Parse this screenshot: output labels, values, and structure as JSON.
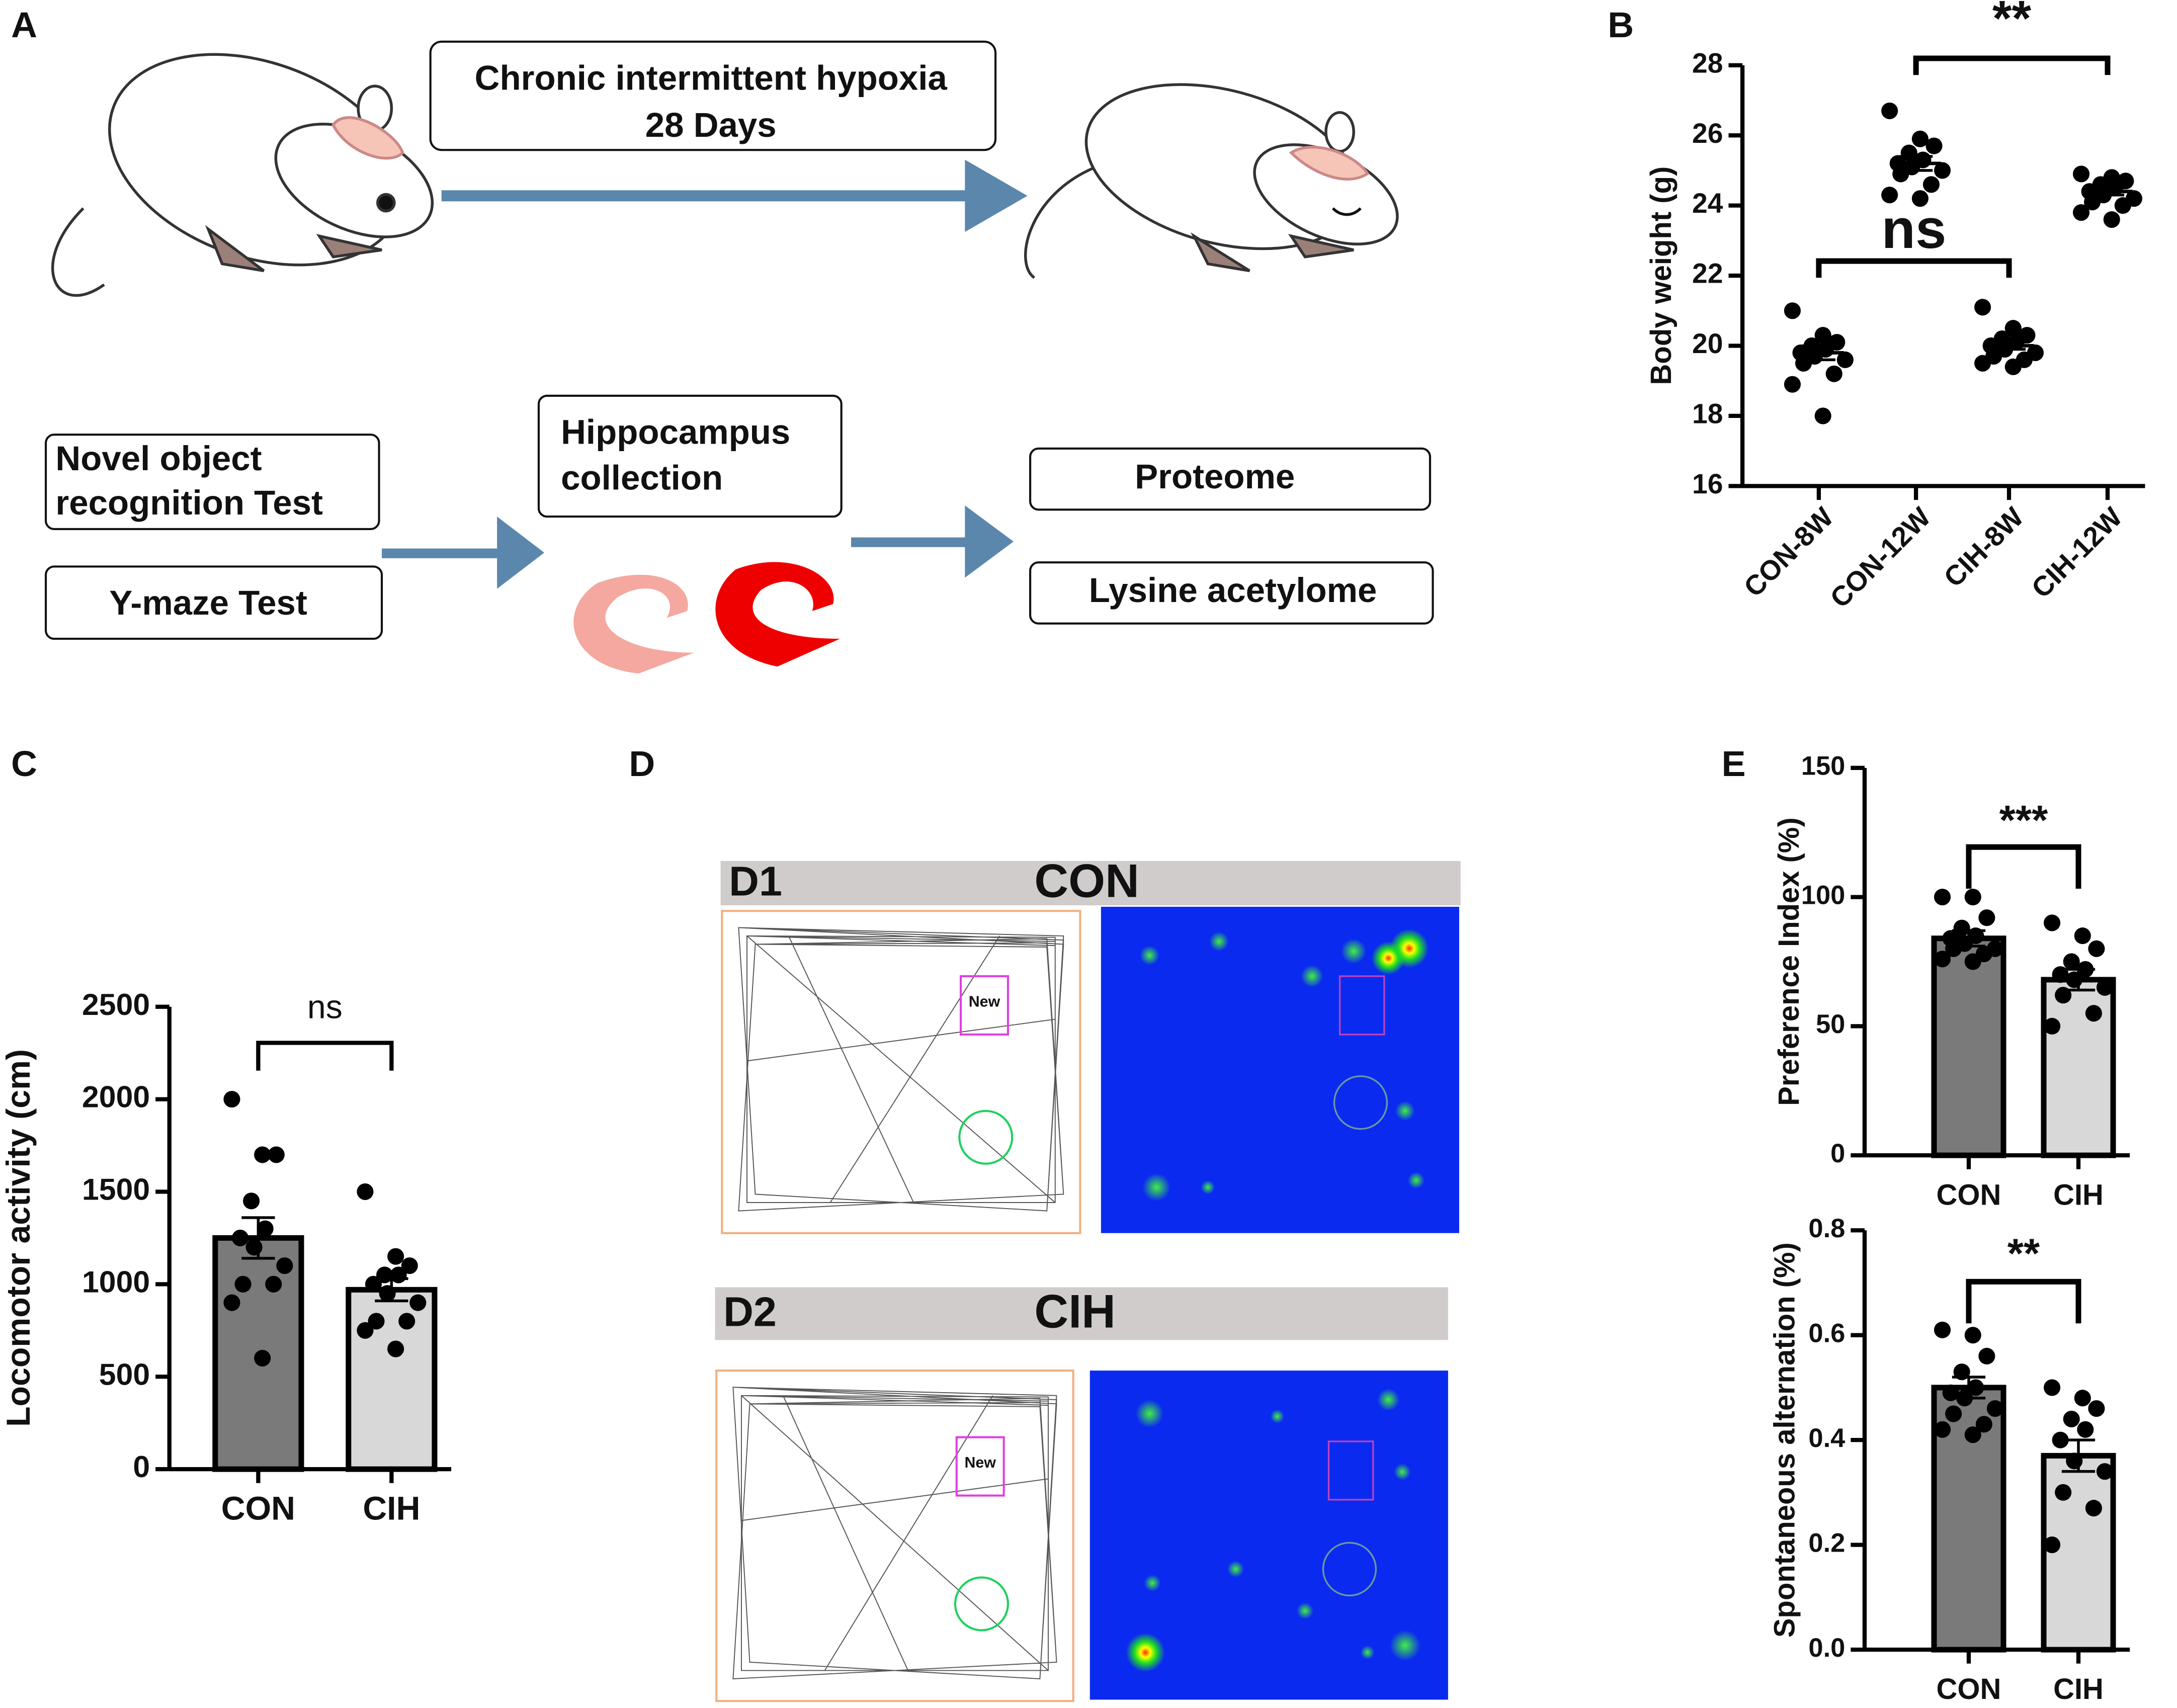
{
  "panel_labels": [
    "A",
    "B",
    "C",
    "D",
    "E"
  ],
  "diagram": {
    "hypoxia": [
      "Chronic intermittent hypoxia",
      "28 Days"
    ],
    "tests": [
      [
        "Novel object",
        "recognition Test"
      ],
      [
        "Y-maze Test"
      ]
    ],
    "collection": [
      "Hippocampus",
      "collection"
    ],
    "omics": [
      "Proteome",
      "Lysine acetylome"
    ]
  },
  "tracking": {
    "panels": [
      {
        "label": "D1",
        "group": "CON",
        "object": "New"
      },
      {
        "label": "D2",
        "group": "CIH",
        "object": "New"
      }
    ]
  },
  "chart_data": [
    {
      "type": "dot",
      "y_label": "Body weight (g)",
      "categories": [
        "CON-8W",
        "CON-12W",
        "CIH-8W",
        "CIH-12W"
      ],
      "points": [
        [
          21,
          20.3,
          20.1,
          20,
          19.9,
          19.8,
          19.7,
          19.6,
          19.5,
          19.2,
          18.9,
          18
        ],
        [
          26.7,
          25.9,
          25.7,
          25.5,
          25.3,
          25.2,
          25.1,
          25,
          24.9,
          24.6,
          24.3,
          24.2
        ],
        [
          21.1,
          20.5,
          20.3,
          20.2,
          20.1,
          20,
          19.9,
          19.8,
          19.7,
          19.6,
          19.5,
          19.4
        ],
        [
          24.9,
          24.8,
          24.7,
          24.6,
          24.5,
          24.4,
          24.3,
          24.2,
          24.1,
          24,
          23.8,
          23.6
        ]
      ],
      "means": [
        19.8,
        25.2,
        20,
        24.4
      ],
      "errors": [
        0.2,
        0.2,
        0.1,
        0.1
      ],
      "color": "#000000",
      "ylim": [
        16,
        28
      ],
      "yticks": [
        16,
        18,
        20,
        22,
        24,
        26,
        28
      ],
      "annotations": [
        "**",
        "ns"
      ]
    },
    {
      "type": "bar",
      "y_label": "Locomotor activity (cm)",
      "categories": [
        "CON",
        "CIH"
      ],
      "values": [
        1250,
        970
      ],
      "errors": [
        110,
        60
      ],
      "points": [
        [
          2000,
          1700,
          1700,
          1450,
          1300,
          1250,
          1200,
          1100,
          1000,
          1000,
          900,
          600
        ],
        [
          1500,
          1150,
          1100,
          1050,
          1050,
          1000,
          950,
          900,
          800,
          800,
          750,
          650
        ]
      ],
      "colors": [
        "#7a7a7a",
        "#d8d8d8"
      ],
      "ylim": [
        0,
        2500
      ],
      "yticks": [
        0,
        500,
        1000,
        1500,
        2000,
        2500
      ],
      "annotations": [
        "ns"
      ]
    },
    {
      "type": "bar",
      "y_label": "Preference Index (%)",
      "categories": [
        "CON",
        "CIH"
      ],
      "values": [
        84,
        68
      ],
      "errors": [
        3,
        4
      ],
      "points": [
        [
          100,
          100,
          92,
          88,
          85,
          84,
          82,
          80,
          80,
          78,
          76,
          75
        ],
        [
          90,
          85,
          80,
          75,
          72,
          70,
          68,
          65,
          62,
          55,
          50
        ]
      ],
      "colors": [
        "#7a7a7a",
        "#d8d8d8"
      ],
      "ylim": [
        0,
        150
      ],
      "yticks": [
        0,
        50,
        100,
        150
      ],
      "annotations": [
        "***"
      ]
    },
    {
      "type": "bar",
      "y_label": "Spontaneous alternation (%)",
      "categories": [
        "CON",
        "CIH"
      ],
      "values": [
        0.5,
        0.37
      ],
      "errors": [
        0.02,
        0.03
      ],
      "points": [
        [
          0.61,
          0.6,
          0.56,
          0.53,
          0.5,
          0.49,
          0.48,
          0.46,
          0.45,
          0.43,
          0.42,
          0.41
        ],
        [
          0.5,
          0.48,
          0.46,
          0.44,
          0.42,
          0.4,
          0.36,
          0.34,
          0.3,
          0.27,
          0.2
        ]
      ],
      "colors": [
        "#7a7a7a",
        "#d8d8d8"
      ],
      "ylim": [
        0,
        0.8
      ],
      "yticks": [
        {
          "value": 0,
          "label": "0.0"
        },
        0.2,
        0.4,
        0.6,
        0.8
      ],
      "annotations": [
        "**"
      ]
    }
  ]
}
